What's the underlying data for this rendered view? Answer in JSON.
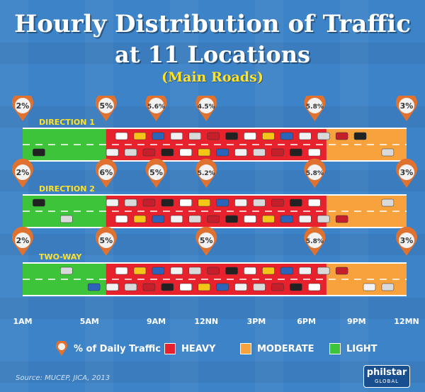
{
  "title_line1": "Hourly Distribution of Traffic",
  "title_line2": "at 11 Locations",
  "subtitle": "(Main Roads)",
  "legend": {
    "pin": "% of Daily Traffic",
    "heavy": "HEAVY",
    "moderate": "MODERATE",
    "light": "LIGHT"
  },
  "source": "Source: MUCEP, JICA, 2013",
  "logo": {
    "line1": "philstar",
    "line2": "GLOBAL"
  },
  "colors": {
    "heavy": "#e8222c",
    "moderate": "#f7a23c",
    "light": "#3dc43a",
    "pin": "#e0712f",
    "label": "#ffe228",
    "background": "#3d83c7"
  },
  "chart_data": {
    "type": "timeline",
    "x_tick_labels": [
      "1AM",
      "5AM",
      "9AM",
      "12NN",
      "3PM",
      "6PM",
      "9PM",
      "12MN"
    ],
    "x_hours": [
      1,
      5,
      9,
      12,
      15,
      18,
      21,
      24
    ],
    "rows": [
      {
        "label": "DIRECTION 1",
        "segments": [
          {
            "from": 1,
            "to": 6,
            "level": "light"
          },
          {
            "from": 6,
            "to": 19.2,
            "level": "heavy"
          },
          {
            "from": 19.2,
            "to": 24,
            "level": "moderate"
          }
        ],
        "pins": [
          {
            "hour": 1,
            "value": "2%"
          },
          {
            "hour": 6,
            "value": "5%"
          },
          {
            "hour": 9,
            "value": "5.6%"
          },
          {
            "hour": 12,
            "value": "4.5%"
          },
          {
            "hour": 18.5,
            "value": "5.8%"
          },
          {
            "hour": 24,
            "value": "3%"
          }
        ]
      },
      {
        "label": "DIRECTION 2",
        "segments": [
          {
            "from": 1,
            "to": 6,
            "level": "light"
          },
          {
            "from": 6,
            "to": 19.2,
            "level": "heavy"
          },
          {
            "from": 19.2,
            "to": 24,
            "level": "moderate"
          }
        ],
        "pins": [
          {
            "hour": 1,
            "value": "2%"
          },
          {
            "hour": 6,
            "value": "6%"
          },
          {
            "hour": 9,
            "value": "5%"
          },
          {
            "hour": 12,
            "value": "5.2%"
          },
          {
            "hour": 18.5,
            "value": "5.8%"
          },
          {
            "hour": 24,
            "value": "3%"
          }
        ]
      },
      {
        "label": "TWO-WAY",
        "segments": [
          {
            "from": 1,
            "to": 6,
            "level": "light"
          },
          {
            "from": 6,
            "to": 19.2,
            "level": "heavy"
          },
          {
            "from": 19.2,
            "to": 24,
            "level": "moderate"
          }
        ],
        "pins": [
          {
            "hour": 1,
            "value": "2%"
          },
          {
            "hour": 6,
            "value": "5%"
          },
          {
            "hour": 12,
            "value": "5%"
          },
          {
            "hour": 18.5,
            "value": "5.8%"
          },
          {
            "hour": 24,
            "value": "3%"
          }
        ]
      }
    ]
  }
}
